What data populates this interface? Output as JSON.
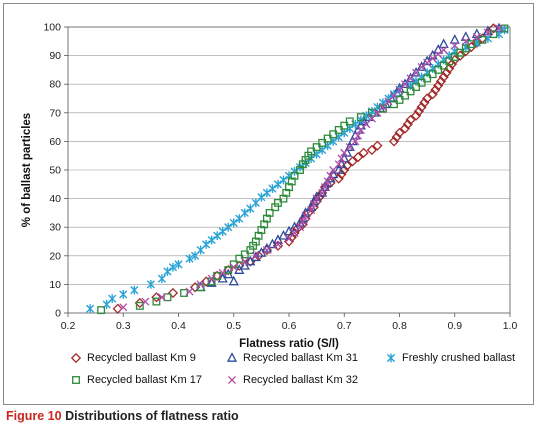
{
  "caption": {
    "number": "Figure 10",
    "text": "Distributions of flatness ratio"
  },
  "chart_data": {
    "type": "scatter",
    "xlabel": "Flatness ratio (S/l)",
    "ylabel": "% of ballast particles",
    "xlim": [
      0.2,
      1.0
    ],
    "ylim": [
      0,
      100
    ],
    "x_ticks": [
      "0.2",
      "0.3",
      "0.4",
      "0.5",
      "0.6",
      "0.7",
      "0.8",
      "0.9",
      "1.0"
    ],
    "y_ticks": [
      "0",
      "10",
      "20",
      "30",
      "40",
      "50",
      "60",
      "70",
      "80",
      "90",
      "100"
    ],
    "grid": "horizontal",
    "legend_position": "bottom",
    "series": [
      {
        "name": "Recycled ballast Km 9",
        "marker": "diamond",
        "color": "#a52a2a",
        "points": [
          [
            0.29,
            1.5
          ],
          [
            0.33,
            3.5
          ],
          [
            0.36,
            5.5
          ],
          [
            0.39,
            7
          ],
          [
            0.43,
            9
          ],
          [
            0.45,
            11
          ],
          [
            0.47,
            13
          ],
          [
            0.49,
            15
          ],
          [
            0.51,
            16.5
          ],
          [
            0.53,
            18
          ],
          [
            0.545,
            20
          ],
          [
            0.56,
            22
          ],
          [
            0.58,
            23.5
          ],
          [
            0.6,
            25
          ],
          [
            0.605,
            26.5
          ],
          [
            0.61,
            28
          ],
          [
            0.615,
            29.5
          ],
          [
            0.625,
            31
          ],
          [
            0.63,
            33
          ],
          [
            0.635,
            35
          ],
          [
            0.645,
            37
          ],
          [
            0.65,
            39
          ],
          [
            0.655,
            40.5
          ],
          [
            0.66,
            42
          ],
          [
            0.665,
            44
          ],
          [
            0.675,
            45.5
          ],
          [
            0.69,
            47
          ],
          [
            0.695,
            48.5
          ],
          [
            0.7,
            50
          ],
          [
            0.705,
            51.5
          ],
          [
            0.715,
            53
          ],
          [
            0.725,
            54.5
          ],
          [
            0.735,
            56
          ],
          [
            0.75,
            57
          ],
          [
            0.76,
            58.5
          ],
          [
            0.79,
            60
          ],
          [
            0.795,
            61.5
          ],
          [
            0.8,
            63
          ],
          [
            0.81,
            64.5
          ],
          [
            0.815,
            66
          ],
          [
            0.82,
            67.5
          ],
          [
            0.83,
            69
          ],
          [
            0.835,
            70.5
          ],
          [
            0.84,
            72
          ],
          [
            0.845,
            73.5
          ],
          [
            0.85,
            75
          ],
          [
            0.86,
            76.5
          ],
          [
            0.865,
            78
          ],
          [
            0.87,
            79.5
          ],
          [
            0.875,
            81
          ],
          [
            0.88,
            82.5
          ],
          [
            0.885,
            84
          ],
          [
            0.89,
            85.5
          ],
          [
            0.895,
            87
          ],
          [
            0.9,
            88.5
          ],
          [
            0.91,
            90
          ],
          [
            0.92,
            91.5
          ],
          [
            0.93,
            93
          ],
          [
            0.94,
            94.5
          ],
          [
            0.95,
            96
          ],
          [
            0.96,
            97.5
          ],
          [
            0.97,
            99.5
          ]
        ]
      },
      {
        "name": "Recycled ballast Km 31",
        "marker": "triangle",
        "color": "#2b4a9a",
        "points": [
          [
            0.44,
            9
          ],
          [
            0.46,
            10.5
          ],
          [
            0.48,
            12
          ],
          [
            0.49,
            13.5
          ],
          [
            0.5,
            11
          ],
          [
            0.51,
            15
          ],
          [
            0.52,
            16.5
          ],
          [
            0.53,
            18
          ],
          [
            0.54,
            19.5
          ],
          [
            0.55,
            21
          ],
          [
            0.56,
            22.5
          ],
          [
            0.57,
            24
          ],
          [
            0.58,
            25.5
          ],
          [
            0.59,
            27
          ],
          [
            0.6,
            28.5
          ],
          [
            0.61,
            30
          ],
          [
            0.62,
            31.5
          ],
          [
            0.625,
            33
          ],
          [
            0.63,
            35
          ],
          [
            0.64,
            37
          ],
          [
            0.645,
            39
          ],
          [
            0.65,
            40.5
          ],
          [
            0.66,
            42
          ],
          [
            0.665,
            44
          ],
          [
            0.67,
            45.5
          ],
          [
            0.675,
            47
          ],
          [
            0.68,
            48.5
          ],
          [
            0.69,
            50
          ],
          [
            0.695,
            52
          ],
          [
            0.7,
            54
          ],
          [
            0.705,
            56
          ],
          [
            0.71,
            58
          ],
          [
            0.715,
            60
          ],
          [
            0.72,
            62
          ],
          [
            0.725,
            64
          ],
          [
            0.73,
            65.5
          ],
          [
            0.735,
            67
          ],
          [
            0.745,
            68.5
          ],
          [
            0.755,
            70
          ],
          [
            0.765,
            71.5
          ],
          [
            0.775,
            73
          ],
          [
            0.785,
            75
          ],
          [
            0.795,
            77
          ],
          [
            0.8,
            78.5
          ],
          [
            0.81,
            80
          ],
          [
            0.82,
            82
          ],
          [
            0.83,
            84
          ],
          [
            0.84,
            86
          ],
          [
            0.85,
            88
          ],
          [
            0.86,
            90
          ],
          [
            0.87,
            92
          ],
          [
            0.88,
            94
          ],
          [
            0.9,
            95.5
          ],
          [
            0.92,
            96.5
          ],
          [
            0.94,
            97.5
          ],
          [
            0.96,
            98.5
          ],
          [
            0.98,
            99.5
          ]
        ]
      },
      {
        "name": "Freshly crushed ballast",
        "marker": "asterisk",
        "color": "#29a3d6",
        "points": [
          [
            0.24,
            1.5
          ],
          [
            0.27,
            3
          ],
          [
            0.28,
            5
          ],
          [
            0.3,
            6.5
          ],
          [
            0.32,
            8
          ],
          [
            0.35,
            10
          ],
          [
            0.37,
            12
          ],
          [
            0.38,
            14.5
          ],
          [
            0.39,
            16
          ],
          [
            0.4,
            17
          ],
          [
            0.42,
            19
          ],
          [
            0.43,
            20
          ],
          [
            0.44,
            22
          ],
          [
            0.45,
            24
          ],
          [
            0.46,
            25.5
          ],
          [
            0.47,
            27
          ],
          [
            0.48,
            28.5
          ],
          [
            0.49,
            30
          ],
          [
            0.5,
            31.5
          ],
          [
            0.51,
            33
          ],
          [
            0.52,
            35
          ],
          [
            0.53,
            36.5
          ],
          [
            0.54,
            38.5
          ],
          [
            0.55,
            40.5
          ],
          [
            0.56,
            42
          ],
          [
            0.57,
            43.5
          ],
          [
            0.58,
            45
          ],
          [
            0.59,
            46.5
          ],
          [
            0.6,
            48
          ],
          [
            0.61,
            49.5
          ],
          [
            0.62,
            51
          ],
          [
            0.63,
            52.5
          ],
          [
            0.64,
            54
          ],
          [
            0.65,
            55.5
          ],
          [
            0.66,
            57
          ],
          [
            0.67,
            58.5
          ],
          [
            0.68,
            60
          ],
          [
            0.69,
            61.5
          ],
          [
            0.7,
            63
          ],
          [
            0.71,
            64.5
          ],
          [
            0.72,
            66
          ],
          [
            0.73,
            67.5
          ],
          [
            0.74,
            69
          ],
          [
            0.75,
            70.5
          ],
          [
            0.76,
            72
          ],
          [
            0.77,
            73.5
          ],
          [
            0.78,
            75
          ],
          [
            0.79,
            76.5
          ],
          [
            0.8,
            78
          ],
          [
            0.82,
            79.5
          ],
          [
            0.83,
            81
          ],
          [
            0.84,
            82.5
          ],
          [
            0.85,
            84
          ],
          [
            0.86,
            85.5
          ],
          [
            0.87,
            87
          ],
          [
            0.88,
            88.5
          ],
          [
            0.89,
            90
          ],
          [
            0.9,
            91.5
          ],
          [
            0.92,
            93
          ],
          [
            0.94,
            94.5
          ],
          [
            0.96,
            96
          ],
          [
            0.98,
            97.5
          ],
          [
            0.99,
            99
          ]
        ]
      },
      {
        "name": "Recycled ballast Km 17",
        "marker": "square",
        "color": "#2e8b3a",
        "points": [
          [
            0.26,
            1
          ],
          [
            0.33,
            2.5
          ],
          [
            0.36,
            4
          ],
          [
            0.38,
            5.5
          ],
          [
            0.41,
            7
          ],
          [
            0.44,
            9
          ],
          [
            0.46,
            11
          ],
          [
            0.47,
            13
          ],
          [
            0.49,
            15
          ],
          [
            0.5,
            17
          ],
          [
            0.51,
            19
          ],
          [
            0.52,
            20.5
          ],
          [
            0.53,
            22
          ],
          [
            0.535,
            23.5
          ],
          [
            0.54,
            25
          ],
          [
            0.545,
            27
          ],
          [
            0.55,
            29
          ],
          [
            0.555,
            31
          ],
          [
            0.56,
            33
          ],
          [
            0.565,
            35
          ],
          [
            0.575,
            37
          ],
          [
            0.58,
            38.5
          ],
          [
            0.59,
            40
          ],
          [
            0.595,
            42
          ],
          [
            0.6,
            44
          ],
          [
            0.605,
            46
          ],
          [
            0.61,
            48
          ],
          [
            0.62,
            50
          ],
          [
            0.625,
            52
          ],
          [
            0.63,
            53.5
          ],
          [
            0.635,
            55
          ],
          [
            0.64,
            56.5
          ],
          [
            0.65,
            58
          ],
          [
            0.66,
            59.5
          ],
          [
            0.67,
            61
          ],
          [
            0.68,
            62.5
          ],
          [
            0.69,
            64
          ],
          [
            0.7,
            65.5
          ],
          [
            0.71,
            67
          ],
          [
            0.73,
            68.5
          ],
          [
            0.75,
            70
          ],
          [
            0.77,
            71.5
          ],
          [
            0.79,
            73
          ],
          [
            0.8,
            74.5
          ],
          [
            0.81,
            76
          ],
          [
            0.82,
            77.5
          ],
          [
            0.83,
            79
          ],
          [
            0.84,
            80.5
          ],
          [
            0.85,
            82
          ],
          [
            0.86,
            83.5
          ],
          [
            0.87,
            85
          ],
          [
            0.88,
            86.5
          ],
          [
            0.89,
            88
          ],
          [
            0.9,
            89.5
          ],
          [
            0.91,
            91
          ],
          [
            0.92,
            92.5
          ],
          [
            0.93,
            94
          ],
          [
            0.95,
            95.5
          ],
          [
            0.97,
            97.5
          ],
          [
            0.99,
            99.5
          ]
        ]
      },
      {
        "name": "Recycled ballast Km 32",
        "marker": "cross",
        "color": "#b04aa8",
        "points": [
          [
            0.3,
            2
          ],
          [
            0.34,
            4
          ],
          [
            0.37,
            5.5
          ],
          [
            0.42,
            7.5
          ],
          [
            0.44,
            10
          ],
          [
            0.46,
            12
          ],
          [
            0.48,
            14
          ],
          [
            0.5,
            16
          ],
          [
            0.52,
            18
          ],
          [
            0.54,
            20
          ],
          [
            0.56,
            22
          ],
          [
            0.58,
            24
          ],
          [
            0.6,
            26
          ],
          [
            0.61,
            28
          ],
          [
            0.62,
            30
          ],
          [
            0.625,
            32
          ],
          [
            0.63,
            34
          ],
          [
            0.64,
            36
          ],
          [
            0.645,
            38
          ],
          [
            0.65,
            40
          ],
          [
            0.66,
            42
          ],
          [
            0.665,
            44
          ],
          [
            0.67,
            46
          ],
          [
            0.675,
            48
          ],
          [
            0.68,
            50
          ],
          [
            0.69,
            52
          ],
          [
            0.695,
            54
          ],
          [
            0.7,
            56
          ],
          [
            0.71,
            58
          ],
          [
            0.72,
            60
          ],
          [
            0.725,
            62
          ],
          [
            0.73,
            64
          ],
          [
            0.74,
            66
          ],
          [
            0.75,
            68
          ],
          [
            0.76,
            70
          ],
          [
            0.77,
            72
          ],
          [
            0.78,
            74
          ],
          [
            0.79,
            76
          ],
          [
            0.8,
            78
          ],
          [
            0.81,
            80
          ],
          [
            0.82,
            82
          ],
          [
            0.83,
            84
          ],
          [
            0.84,
            86
          ],
          [
            0.85,
            87.5
          ],
          [
            0.86,
            89
          ],
          [
            0.87,
            90.5
          ],
          [
            0.88,
            92
          ],
          [
            0.9,
            93.5
          ],
          [
            0.92,
            95
          ],
          [
            0.94,
            96.5
          ],
          [
            0.96,
            98
          ],
          [
            0.98,
            99.5
          ]
        ]
      }
    ],
    "legend": [
      {
        "series": 0,
        "label": "Recycled ballast Km 9"
      },
      {
        "series": 1,
        "label": "Recycled ballast Km 31"
      },
      {
        "series": 2,
        "label": "Freshly crushed ballast"
      },
      {
        "series": 3,
        "label": "Recycled ballast Km 17"
      },
      {
        "series": 4,
        "label": "Recycled ballast Km 32"
      }
    ]
  }
}
